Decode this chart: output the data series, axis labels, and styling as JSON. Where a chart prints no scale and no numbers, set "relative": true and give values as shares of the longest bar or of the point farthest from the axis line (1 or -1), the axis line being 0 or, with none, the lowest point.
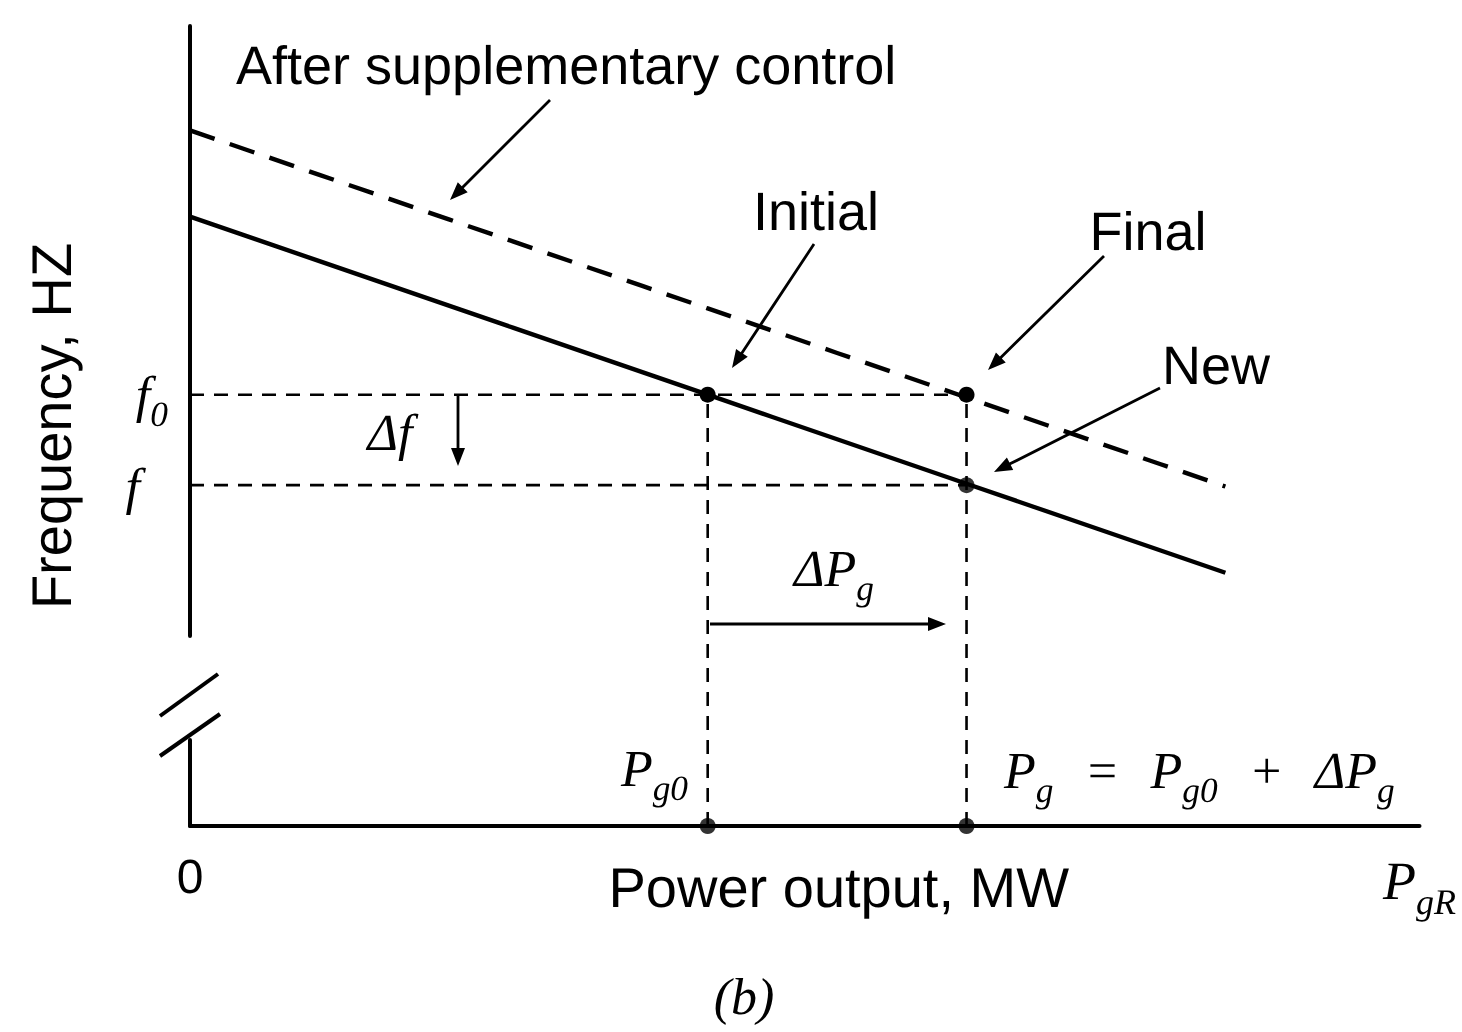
{
  "chart_data": {
    "type": "line",
    "relative": true,
    "xlabel": "Power output, MW",
    "ylabel": "Frequency, HZ",
    "categories": [
      "0",
      null,
      null,
      null,
      null,
      null,
      null,
      null,
      null,
      null,
      null,
      null,
      null,
      null,
      null,
      null,
      null,
      null,
      null,
      "P$_{gR}$"
    ],
    "series": [
      {
        "color": "#000000",
        "line_style": "solid",
        "marker": "none",
        "values": [
          0.876,
          0.844,
          0.812,
          0.78,
          0.748,
          0.716,
          0.684,
          0.652,
          0.62,
          0.588,
          0.556,
          0.524,
          0.492,
          0.46,
          0.428,
          0.396,
          0.364,
          null,
          null,
          null
        ]
      },
      {
        "color": "#000000",
        "line_style": "dashed",
        "marker": "none",
        "values": [
          1,
          0.968,
          0.936,
          0.904,
          0.872,
          0.84,
          0.808,
          0.776,
          0.744,
          0.712,
          0.68,
          0.648,
          0.616,
          0.584,
          0.552,
          0.52,
          0.488,
          null,
          null,
          null
        ]
      },
      {
        "color": "#000000",
        "line_style": "dashed",
        "marker": "none",
        "values": [
          0.62,
          0.62,
          0.62,
          0.62,
          0.62,
          0.62,
          0.62,
          0.62,
          0.62,
          0.62,
          0.62,
          0.62,
          0.62,
          null,
          null,
          null,
          null,
          null,
          null,
          null
        ]
      },
      {
        "color": "#000000",
        "line_style": "dashed",
        "marker": "none",
        "values": [
          0.49,
          0.49,
          0.49,
          0.49,
          0.49,
          0.49,
          0.49,
          0.49,
          0.49,
          0.49,
          0.49,
          0.49,
          0.49,
          null,
          null,
          null,
          null,
          null,
          null,
          null
        ]
      },
      {
        "type": "lollipop",
        "color": "#000000",
        "line_style": "dashed",
        "marker": "circle",
        "values": [
          null,
          null,
          null,
          null,
          null,
          null,
          null,
          null,
          0.62,
          null,
          null,
          null,
          0.62,
          null,
          null,
          null,
          null,
          null,
          null,
          null
        ]
      },
      {
        "type": "scatter",
        "color": "#000000",
        "marker": "circle",
        "values": [
          null,
          null,
          null,
          null,
          null,
          null,
          null,
          null,
          0,
          null,
          null,
          null,
          0,
          null,
          null,
          null,
          null,
          null,
          null,
          null
        ]
      },
      {
        "type": "scatter",
        "color": "#000000",
        "marker": "circle",
        "values": [
          null,
          null,
          null,
          null,
          null,
          null,
          null,
          null,
          null,
          null,
          null,
          null,
          0.49,
          null,
          null,
          null,
          null,
          null,
          null,
          null
        ]
      }
    ],
    "annotations": [
      "After supplementary control",
      "Initial",
      "Final",
      "New",
      "Δf",
      "ΔP$_{g}$",
      "P$_{g0}$",
      "P$_{g}$ = P$_{g0}$ + ΔP$_{g}$",
      "f$_{0}$",
      "f",
      "(b)"
    ]
  }
}
